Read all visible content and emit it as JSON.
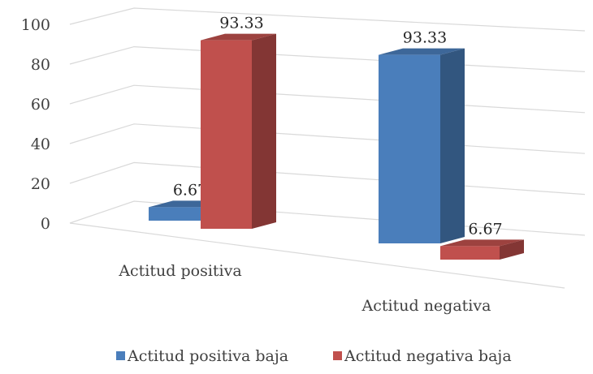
{
  "chart_data": {
    "type": "bar3d",
    "categories": [
      "Actitud positiva",
      "Actitud negativa"
    ],
    "series": [
      {
        "name": "Actitud positiva baja",
        "color": "#4a7ebb",
        "values": [
          6.67,
          93.33
        ]
      },
      {
        "name": "Actitud negativa baja",
        "color": "#c0504d",
        "values": [
          93.33,
          6.67
        ]
      }
    ],
    "ylim": [
      0,
      100
    ],
    "yticks": [
      0,
      20,
      40,
      60,
      80,
      100
    ],
    "grid": true,
    "legend": "bottom"
  }
}
